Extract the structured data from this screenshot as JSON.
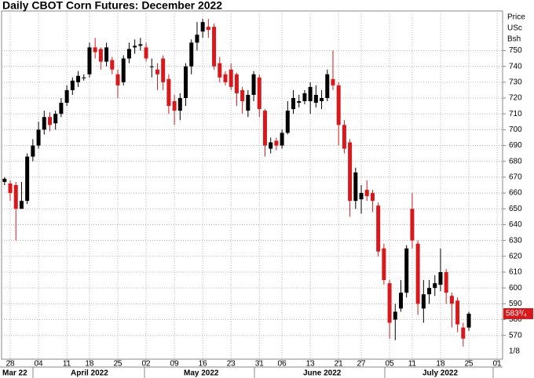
{
  "chart_data": {
    "type": "candlestick",
    "title": "Daily CBOT Corn Futures: December 2022",
    "y_axis_label": [
      "Price",
      "USc",
      "Bsh"
    ],
    "tick_fraction": "1/8",
    "categories": [
      null,
      "28",
      null,
      null,
      null,
      null,
      "04",
      null,
      null,
      null,
      null,
      "11",
      null,
      null,
      null,
      "18",
      null,
      null,
      null,
      null,
      "25",
      null,
      null,
      null,
      null,
      "02",
      null,
      null,
      null,
      null,
      "09",
      null,
      null,
      null,
      null,
      "16",
      null,
      null,
      null,
      null,
      "23",
      null,
      null,
      null,
      null,
      "31",
      null,
      null,
      null,
      "06",
      null,
      null,
      null,
      null,
      "13",
      null,
      null,
      null,
      null,
      "21",
      null,
      null,
      null,
      "27",
      null,
      null,
      null,
      null,
      "05",
      null,
      null,
      null,
      "11",
      null,
      null,
      null,
      null,
      "18",
      null,
      null,
      null,
      null,
      "25",
      null,
      null,
      null,
      null,
      "01"
    ],
    "months": [
      "Mar 22",
      "April 2022",
      "May 2022",
      "June 2022",
      "July 2022"
    ],
    "open": [
      667,
      666,
      665,
      650,
      655,
      683,
      690,
      700,
      708,
      704,
      710,
      717,
      725,
      730,
      733,
      735,
      752,
      751,
      743,
      744,
      735,
      730,
      745,
      752,
      753,
      752,
      740,
      738,
      745,
      732,
      718,
      712,
      720,
      740,
      755,
      762,
      765,
      765,
      742,
      735,
      738,
      735,
      725,
      712,
      722,
      733,
      712,
      688,
      693,
      690,
      698,
      713,
      717,
      718,
      718,
      717,
      718,
      720,
      732,
      728,
      703,
      692,
      655,
      656,
      662,
      660,
      652,
      625,
      603,
      580,
      587,
      597,
      650,
      628,
      587,
      596,
      600,
      602,
      610,
      595,
      592,
      575,
      575,
      null,
      null,
      null,
      null,
      null
    ],
    "high": [
      670,
      668,
      667,
      667,
      685,
      694,
      705,
      712,
      711,
      712,
      720,
      728,
      733,
      737,
      735,
      755,
      758,
      752,
      755,
      746,
      738,
      747,
      755,
      757,
      758,
      755,
      745,
      742,
      747,
      735,
      722,
      723,
      742,
      757,
      768,
      770,
      770,
      767,
      746,
      737,
      742,
      736,
      727,
      725,
      737,
      735,
      713,
      695,
      695,
      700,
      718,
      725,
      722,
      725,
      730,
      728,
      725,
      738,
      750,
      730,
      706,
      694,
      676,
      665,
      668,
      662,
      654,
      628,
      605,
      590,
      605,
      627,
      660,
      630,
      605,
      605,
      608,
      625,
      612,
      597,
      594,
      578,
      585,
      null,
      null,
      null,
      null,
      null
    ],
    "low": [
      665,
      655,
      630,
      650,
      653,
      680,
      688,
      697,
      699,
      700,
      708,
      715,
      722,
      727,
      731,
      733,
      745,
      738,
      740,
      735,
      720,
      728,
      742,
      748,
      750,
      743,
      733,
      725,
      725,
      710,
      703,
      706,
      715,
      735,
      750,
      758,
      758,
      738,
      730,
      728,
      725,
      715,
      710,
      708,
      718,
      708,
      683,
      685,
      687,
      688,
      697,
      710,
      714,
      716,
      710,
      714,
      713,
      718,
      725,
      690,
      685,
      645,
      650,
      647,
      655,
      648,
      620,
      602,
      568,
      567,
      585,
      594,
      625,
      583,
      578,
      590,
      595,
      598,
      590,
      575,
      572,
      563,
      573,
      null,
      null,
      null,
      null,
      null
    ],
    "close": [
      669,
      660,
      650,
      655,
      683,
      690,
      700,
      708,
      703,
      710,
      717,
      725,
      731,
      734,
      733,
      752,
      749,
      743,
      752,
      738,
      728,
      745,
      751,
      753,
      754,
      745,
      740,
      735,
      730,
      715,
      712,
      720,
      740,
      755,
      760,
      768,
      763,
      740,
      733,
      730,
      727,
      723,
      718,
      722,
      735,
      713,
      690,
      692,
      690,
      698,
      712,
      720,
      718,
      723,
      727,
      722,
      720,
      735,
      728,
      703,
      688,
      655,
      673,
      660,
      658,
      655,
      623,
      605,
      578,
      585,
      597,
      625,
      630,
      590,
      596,
      600,
      603,
      610,
      597,
      590,
      577,
      568,
      583.75,
      null,
      null,
      null,
      null,
      null
    ],
    "up_color": "#000000",
    "down_color": "#d7191c",
    "last_price": {
      "value": 583.75,
      "label": "583³/₄"
    },
    "ylim": [
      555,
      775
    ],
    "yticks": [
      570,
      580,
      590,
      600,
      610,
      620,
      630,
      640,
      650,
      660,
      670,
      680,
      690,
      700,
      710,
      720,
      730,
      740,
      750
    ],
    "grid": true
  }
}
